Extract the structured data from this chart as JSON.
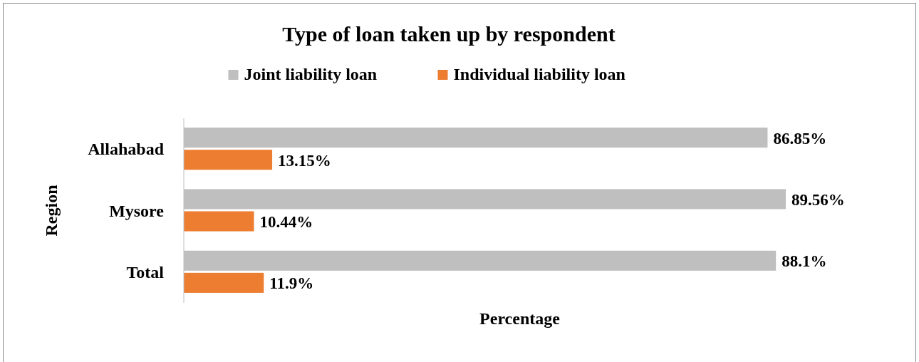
{
  "chart_data": {
    "type": "bar",
    "title": "Type of  loan taken up by respondent",
    "orientation": "horizontal",
    "categories": [
      "Allahabad",
      "Mysore",
      "Total"
    ],
    "xlabel": "Percentage",
    "ylabel": "Region",
    "tick_labels": "y",
    "legend": "top",
    "series": [
      {
        "name": "Joint liability loan",
        "color": "#bfbfbf",
        "values": [
          86.85,
          89.56,
          88.1
        ],
        "value_labels": [
          "86.85%",
          "89.56%",
          "88.1%"
        ]
      },
      {
        "name": "Individual liability loan",
        "color": "#ed7d31",
        "values": [
          13.15,
          10.44,
          11.9
        ],
        "value_labels": [
          "13.15%",
          "10.44%",
          "11.9%"
        ]
      }
    ]
  }
}
